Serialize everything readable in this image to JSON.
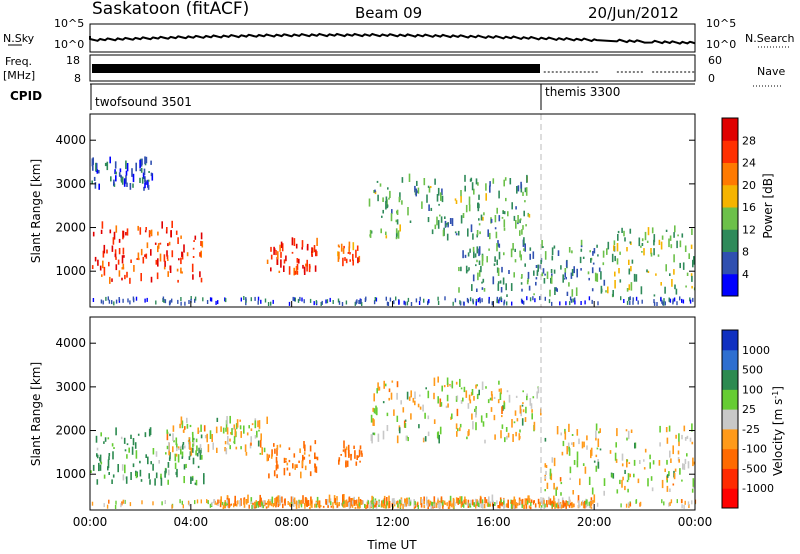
{
  "header": {
    "station": "Saskatoon (fitACF)",
    "beam": "Beam 09",
    "date": "20/Jun/2012"
  },
  "strips": {
    "nsky": {
      "left_label": "N.Sky",
      "right_label": "N.Search",
      "yticks_left": [
        "10^5",
        "10^0"
      ],
      "yticks_right": [
        "10^5",
        "10^0"
      ]
    },
    "freq": {
      "left_label_1": "Freq.",
      "left_label_2": "[MHz]",
      "right_label": "Nave",
      "yticks_left": [
        "18",
        "8"
      ],
      "yticks_right": [
        "60",
        "0"
      ]
    },
    "cpid": {
      "label": "CPID",
      "modes": [
        {
          "name": "twofsound 3501",
          "start_hour": 0
        },
        {
          "name": "themis 3300",
          "start_hour": 18
        }
      ]
    }
  },
  "x_axis": {
    "label": "Time UT",
    "ticks": [
      "00:00",
      "04:00",
      "08:00",
      "12:00",
      "16:00",
      "20:00",
      "00:00"
    ],
    "range_hours": [
      0,
      24
    ]
  },
  "panels": {
    "power": {
      "ylabel": "Slant Range [km]",
      "yticks": [
        "1000",
        "2000",
        "3000",
        "4000"
      ],
      "colorbar_title": "Power [dB]",
      "colorbar_labels": [
        "4",
        "8",
        "12",
        "16",
        "20",
        "24",
        "28"
      ],
      "colorbar_colors": [
        "#0000ff",
        "#3050b0",
        "#2f8a5a",
        "#6cc04a",
        "#f5b400",
        "#ff7a00",
        "#ff3000",
        "#e00000"
      ]
    },
    "velocity": {
      "ylabel": "Slant Range [km]",
      "yticks": [
        "1000",
        "2000",
        "3000",
        "4000"
      ],
      "colorbar_title": "Velocity [m s^-1]",
      "colorbar_labels": [
        "1000",
        "500",
        "100",
        "25",
        "-25",
        "-100",
        "-500",
        "-1000"
      ],
      "colorbar_colors": [
        "#1030c0",
        "#2e6fd0",
        "#2c8a50",
        "#66cc33",
        "#c8c8c8",
        "#ff9a1a",
        "#ff6a00",
        "#ff2a00",
        "#ff0000"
      ]
    }
  },
  "chart_data": [
    {
      "type": "heatmap",
      "title": "Saskatoon (fitACF) Beam 09 20/Jun/2012",
      "xlabel": "Time UT",
      "ylabel": "Slant Range [km]",
      "xlim_hours": [
        0,
        24
      ],
      "ylim_km": [
        180,
        4600
      ],
      "colorbar": "Power [dB]",
      "color_range": [
        0,
        30
      ],
      "features": [
        {
          "t_start": 0.0,
          "t_end": 4.5,
          "r_start": 700,
          "r_end": 2000,
          "level_db": 26
        },
        {
          "t_start": 7.0,
          "t_end": 9.0,
          "r_start": 900,
          "r_end": 1600,
          "level_db": 27
        },
        {
          "t_start": 9.8,
          "t_end": 10.7,
          "r_start": 1100,
          "r_end": 1600,
          "level_db": 24
        },
        {
          "t_start": 11.0,
          "t_end": 17.5,
          "r_start": 1700,
          "r_end": 3100,
          "level_db": 12
        },
        {
          "t_start": 14.5,
          "t_end": 20.5,
          "r_start": 400,
          "r_end": 1600,
          "level_db": 10
        },
        {
          "t_start": 20.5,
          "t_end": 24.0,
          "r_start": 400,
          "r_end": 1900,
          "level_db": 13
        },
        {
          "t_start": 0.0,
          "t_end": 2.5,
          "r_start": 2800,
          "r_end": 3500,
          "level_db": 6
        }
      ]
    },
    {
      "type": "heatmap",
      "title": "",
      "xlabel": "Time UT",
      "ylabel": "Slant Range [km]",
      "xlim_hours": [
        0,
        24
      ],
      "ylim_km": [
        180,
        4600
      ],
      "colorbar": "Velocity [m s^-1]",
      "color_range": [
        -1000,
        1000
      ],
      "features": [
        {
          "t_start": 0.0,
          "t_end": 4.5,
          "r_start": 700,
          "r_end": 1900,
          "velocity": 120
        },
        {
          "t_start": 3.0,
          "t_end": 7.0,
          "r_start": 1400,
          "r_end": 2200,
          "velocity": 0
        },
        {
          "t_start": 7.0,
          "t_end": 9.0,
          "r_start": 900,
          "r_end": 1700,
          "velocity": -150
        },
        {
          "t_start": 9.8,
          "t_end": 10.8,
          "r_start": 1100,
          "r_end": 1600,
          "velocity": -200
        },
        {
          "t_start": 11.0,
          "t_end": 18.0,
          "r_start": 1700,
          "r_end": 3100,
          "velocity": 0
        },
        {
          "t_start": 18.0,
          "t_end": 24.0,
          "r_start": 500,
          "r_end": 2000,
          "velocity": 0
        },
        {
          "t_start": 5.0,
          "t_end": 20.0,
          "r_start": 200,
          "r_end": 350,
          "velocity": -60
        }
      ]
    }
  ]
}
